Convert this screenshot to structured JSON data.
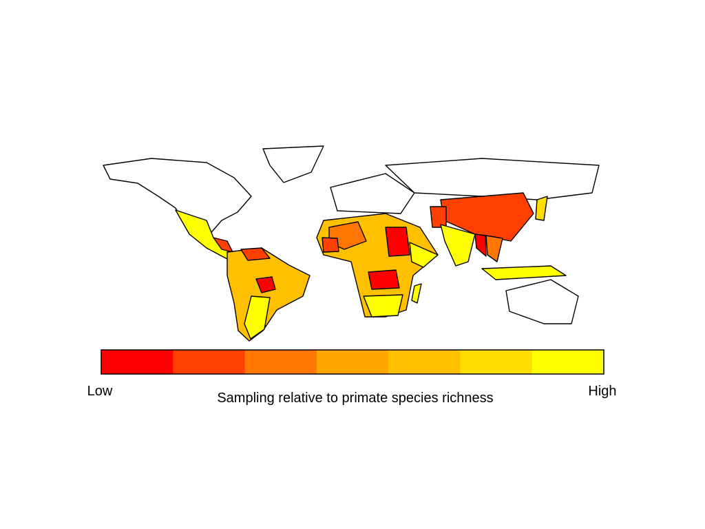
{
  "legend": {
    "title": "Sampling relative to primate species richness",
    "low_label": "Low",
    "high_label": "High",
    "colors": [
      "#ff0000",
      "#ff4000",
      "#ff7700",
      "#ffa500",
      "#ffc000",
      "#ffdf00",
      "#ffff00"
    ]
  }
}
